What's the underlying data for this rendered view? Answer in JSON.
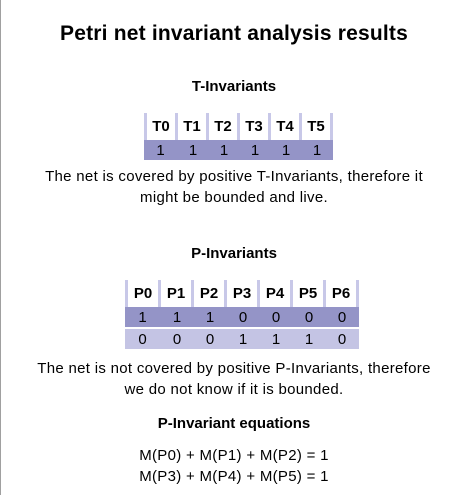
{
  "title": "Petri net invariant analysis results",
  "t_invariants": {
    "heading": "T-Invariants",
    "headers": [
      "T0",
      "T1",
      "T2",
      "T3",
      "T4",
      "T5"
    ],
    "rows": [
      [
        "1",
        "1",
        "1",
        "1",
        "1",
        "1"
      ]
    ],
    "note_line1": "The net is covered by positive T-Invariants, therefore it",
    "note_line2": "might be bounded and live."
  },
  "p_invariants": {
    "heading": "P-Invariants",
    "headers": [
      "P0",
      "P1",
      "P2",
      "P3",
      "P4",
      "P5",
      "P6"
    ],
    "rows": [
      [
        "1",
        "1",
        "1",
        "0",
        "0",
        "0",
        "0"
      ],
      [
        "0",
        "0",
        "0",
        "1",
        "1",
        "1",
        "0"
      ]
    ],
    "note_line1": "The net is not covered by positive P-Invariants, therefore",
    "note_line2": "we do not know if it is bounded."
  },
  "equations": {
    "heading": "P-Invariant equations",
    "lines": [
      "M(P0) + M(P1) + M(P2) = 1",
      "M(P3) + M(P4) + M(P5) = 1"
    ]
  }
}
